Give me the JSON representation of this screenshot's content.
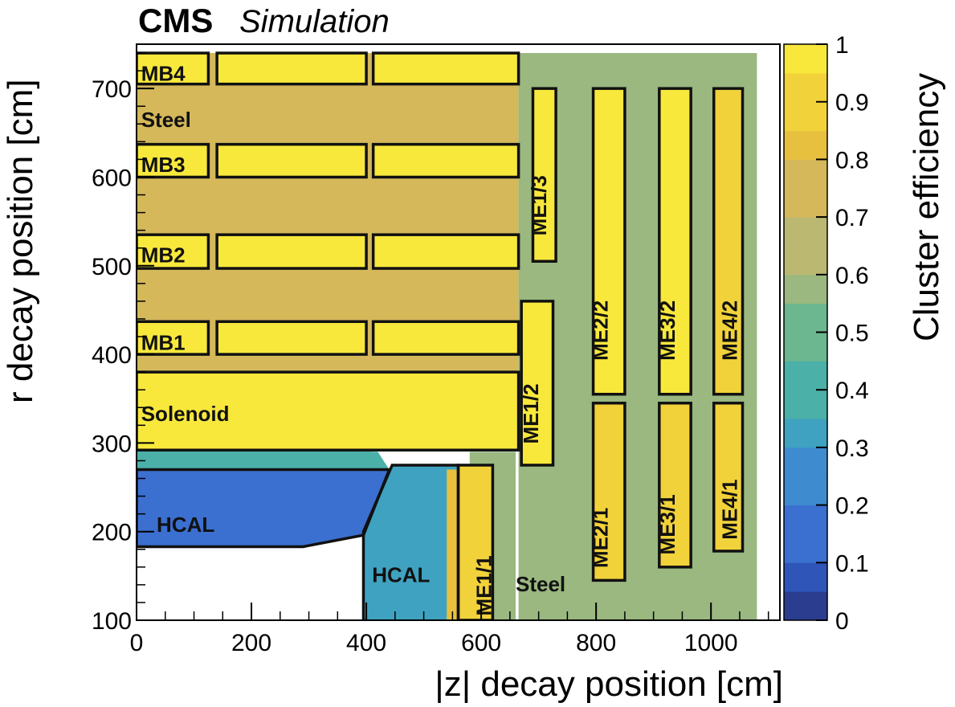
{
  "chart_data": {
    "type": "heatmap",
    "title_bold": "CMS",
    "title_italic": "Simulation",
    "xlabel": "|z| decay position [cm]",
    "ylabel": "r decay position [cm]",
    "colorbar_label": "Cluster efficiency",
    "xlim": [
      0,
      1120
    ],
    "ylim": [
      100,
      750
    ],
    "zlim": [
      0,
      1
    ],
    "x_ticks": [
      "0",
      "200",
      "400",
      "600",
      "800",
      "1000"
    ],
    "x_tick_values": [
      0,
      200,
      400,
      600,
      800,
      1000
    ],
    "y_ticks": [
      "100",
      "200",
      "300",
      "400",
      "500",
      "600",
      "700"
    ],
    "y_tick_values": [
      100,
      200,
      300,
      400,
      500,
      600,
      700
    ],
    "colorbar_ticks": [
      "0",
      "0.1",
      "0.2",
      "0.3",
      "0.4",
      "0.5",
      "0.6",
      "0.7",
      "0.8",
      "0.9",
      "1"
    ],
    "colorbar_tick_values": [
      0,
      0.1,
      0.2,
      0.3,
      0.4,
      0.5,
      0.6,
      0.7,
      0.8,
      0.9,
      1.0
    ],
    "palette": [
      "#2a3d8f",
      "#2f55b8",
      "#3b6fd0",
      "#3f8bd0",
      "#3fa2c0",
      "#4ab0a8",
      "#6cb690",
      "#9ab880",
      "#bbb872",
      "#d4b85a",
      "#e8c040",
      "#f2d23a",
      "#f8e83c"
    ],
    "detector_labels": [
      {
        "text": "MB4",
        "z": 8,
        "r": 717
      },
      {
        "text": "Steel",
        "z": 8,
        "r": 665
      },
      {
        "text": "MB3",
        "z": 8,
        "r": 614
      },
      {
        "text": "MB2",
        "z": 8,
        "r": 512
      },
      {
        "text": "MB1",
        "z": 8,
        "r": 413
      },
      {
        "text": "Solenoid",
        "z": 8,
        "r": 333
      },
      {
        "text": "HCAL",
        "z": 35,
        "r": 208
      },
      {
        "text": "HCAL",
        "z": 410,
        "r": 151
      },
      {
        "text": "Steel",
        "z": 660,
        "r": 141
      }
    ],
    "vertical_labels": [
      {
        "text": "ME1/3",
        "z": 713,
        "r": 568
      },
      {
        "text": "ME1/2",
        "z": 699,
        "r": 333
      },
      {
        "text": "ME1/1",
        "z": 617,
        "r": 139
      },
      {
        "text": "ME2/2",
        "z": 820,
        "r": 427
      },
      {
        "text": "ME2/1",
        "z": 820,
        "r": 193
      },
      {
        "text": "ME3/2",
        "z": 937,
        "r": 427
      },
      {
        "text": "ME3/1",
        "z": 937,
        "r": 208
      },
      {
        "text": "ME4/2",
        "z": 1045,
        "r": 427
      },
      {
        "text": "ME4/1",
        "z": 1045,
        "r": 225
      }
    ],
    "efficiency_regions": [
      {
        "zr": [
          [
            0,
            100
          ],
          [
            395,
            100
          ],
          [
            395,
            196
          ],
          [
            290,
            183
          ],
          [
            0,
            183
          ]
        ],
        "eff": -1
      },
      {
        "zr": [
          [
            0,
            183
          ],
          [
            290,
            183
          ],
          [
            395,
            196
          ],
          [
            440,
            270
          ],
          [
            0,
            270
          ]
        ],
        "eff": 0.15
      },
      {
        "zr": [
          [
            0,
            270
          ],
          [
            440,
            270
          ],
          [
            420,
            290
          ],
          [
            0,
            300
          ]
        ],
        "eff": 0.4
      },
      {
        "zr": [
          [
            395,
            100
          ],
          [
            560,
            100
          ],
          [
            560,
            275
          ],
          [
            445,
            275
          ],
          [
            395,
            200
          ]
        ],
        "eff": 0.3
      },
      {
        "zr": [
          [
            540,
            100
          ],
          [
            580,
            100
          ],
          [
            580,
            270
          ],
          [
            540,
            270
          ]
        ],
        "eff": 0.8
      },
      {
        "zr": [
          [
            580,
            100
          ],
          [
            660,
            100
          ],
          [
            660,
            290
          ],
          [
            580,
            290
          ]
        ],
        "eff": 0.55
      },
      {
        "zr": [
          [
            0,
            300
          ],
          [
            665,
            300
          ],
          [
            665,
            740
          ],
          [
            0,
            740
          ]
        ],
        "eff": 0.72
      },
      {
        "zr": [
          [
            665,
            100
          ],
          [
            1080,
            100
          ],
          [
            1080,
            740
          ],
          [
            665,
            740
          ]
        ],
        "eff": 0.62
      }
    ],
    "detector_boxes": [
      {
        "z0": 0,
        "z1": 125,
        "r0": 705,
        "r1": 740,
        "eff": 0.98
      },
      {
        "z0": 140,
        "z1": 400,
        "r0": 705,
        "r1": 740,
        "eff": 0.98
      },
      {
        "z0": 412,
        "z1": 665,
        "r0": 705,
        "r1": 740,
        "eff": 0.98
      },
      {
        "z0": 0,
        "z1": 125,
        "r0": 600,
        "r1": 637,
        "eff": 0.98
      },
      {
        "z0": 140,
        "z1": 400,
        "r0": 600,
        "r1": 637,
        "eff": 0.98
      },
      {
        "z0": 412,
        "z1": 665,
        "r0": 600,
        "r1": 637,
        "eff": 0.98
      },
      {
        "z0": 0,
        "z1": 125,
        "r0": 497,
        "r1": 535,
        "eff": 0.98
      },
      {
        "z0": 140,
        "z1": 400,
        "r0": 497,
        "r1": 535,
        "eff": 0.98
      },
      {
        "z0": 412,
        "z1": 665,
        "r0": 497,
        "r1": 535,
        "eff": 0.98
      },
      {
        "z0": 0,
        "z1": 125,
        "r0": 400,
        "r1": 437,
        "eff": 0.98
      },
      {
        "z0": 140,
        "z1": 400,
        "r0": 400,
        "r1": 437,
        "eff": 0.98
      },
      {
        "z0": 412,
        "z1": 665,
        "r0": 400,
        "r1": 437,
        "eff": 0.98
      },
      {
        "z0": 0,
        "z1": 665,
        "r0": 292,
        "r1": 380,
        "eff": 0.96
      },
      {
        "z0": 690,
        "z1": 730,
        "r0": 505,
        "r1": 700,
        "eff": 0.98
      },
      {
        "z0": 670,
        "z1": 725,
        "r0": 275,
        "r1": 460,
        "eff": 0.97
      },
      {
        "z0": 560,
        "z1": 620,
        "r0": 100,
        "r1": 275,
        "eff": 0.95
      },
      {
        "z0": 795,
        "z1": 850,
        "r0": 355,
        "r1": 700,
        "eff": 0.97
      },
      {
        "z0": 795,
        "z1": 850,
        "r0": 145,
        "r1": 345,
        "eff": 0.95
      },
      {
        "z0": 910,
        "z1": 965,
        "r0": 355,
        "r1": 700,
        "eff": 0.97
      },
      {
        "z0": 910,
        "z1": 965,
        "r0": 160,
        "r1": 345,
        "eff": 0.95
      },
      {
        "z0": 1005,
        "z1": 1055,
        "r0": 355,
        "r1": 700,
        "eff": 0.95
      },
      {
        "z0": 1005,
        "z1": 1055,
        "r0": 178,
        "r1": 345,
        "eff": 0.9
      }
    ]
  }
}
